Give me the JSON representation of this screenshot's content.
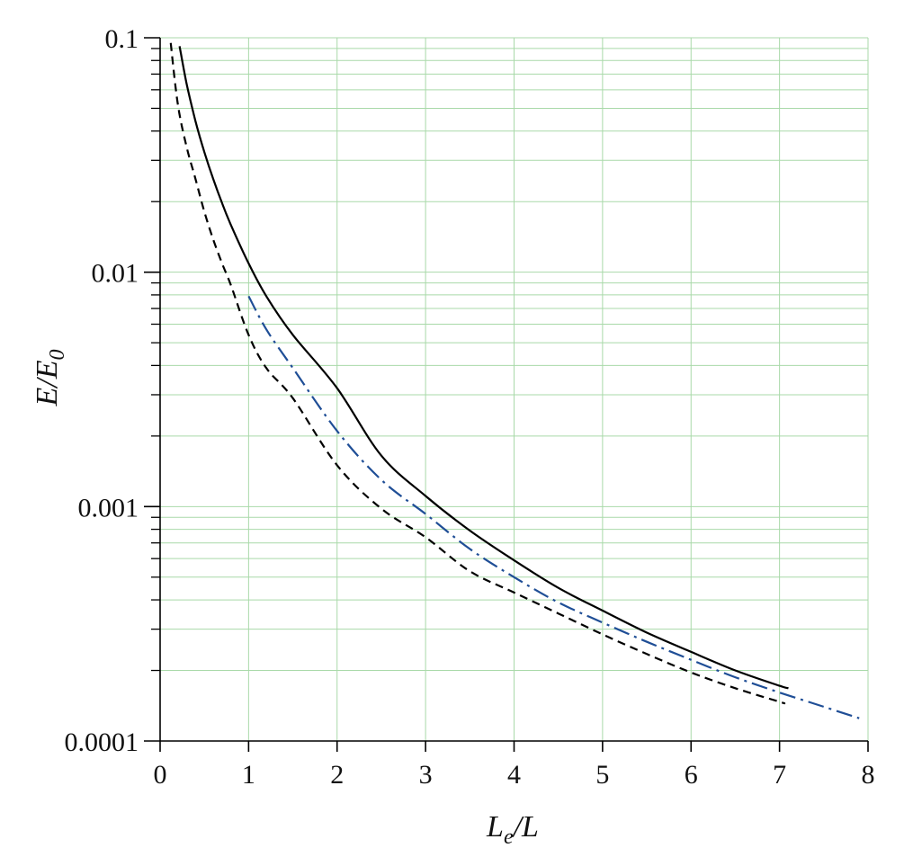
{
  "chart_data": {
    "type": "line",
    "title": "",
    "xlabel": {
      "main": "L",
      "sub": "e",
      "tail": "/L"
    },
    "ylabel": {
      "main": "E/E",
      "sub": "0"
    },
    "xlim": [
      0,
      8
    ],
    "ylim": [
      0.0001,
      0.1
    ],
    "yscale": "log",
    "grid": true,
    "grid_color": "#a9d9a9",
    "x_ticks": [
      0,
      1,
      2,
      3,
      4,
      5,
      6,
      7,
      8
    ],
    "x_tick_labels": [
      "0",
      "1",
      "2",
      "3",
      "4",
      "5",
      "6",
      "7",
      "8"
    ],
    "y_ticks": [
      0.0001,
      0.001,
      0.01,
      0.1
    ],
    "y_tick_labels": [
      "0.0001",
      "0.001",
      "0.01",
      "0.1"
    ],
    "series": [
      {
        "style": "solid",
        "color": "#000000",
        "x": [
          0.22,
          0.3,
          0.4,
          0.5,
          0.6,
          0.7,
          0.8,
          1.0,
          1.2,
          1.5,
          2.0,
          2.5,
          3.0,
          3.5,
          4.0,
          4.5,
          5.0,
          5.5,
          6.0,
          6.5,
          7.0,
          7.1
        ],
        "y": [
          0.092,
          0.0635,
          0.0441,
          0.0325,
          0.025,
          0.0197,
          0.0159,
          0.0109,
          0.0079,
          0.0054,
          0.0032,
          0.00165,
          0.00111,
          0.00079,
          0.00059,
          0.00045,
          0.00036,
          0.00029,
          0.00024,
          0.0002,
          0.000172,
          0.000168
        ]
      },
      {
        "style": "dashed",
        "color": "#000000",
        "x": [
          0.12,
          0.2,
          0.3,
          0.4,
          0.5,
          0.6,
          0.7,
          0.8,
          1.0,
          1.2,
          1.5,
          2.0,
          2.5,
          3.0,
          3.5,
          4.0,
          4.5,
          5.0,
          5.5,
          6.0,
          6.5,
          7.0,
          7.05
        ],
        "y": [
          0.095,
          0.0521,
          0.0342,
          0.025,
          0.0181,
          0.0138,
          0.0109,
          0.0088,
          0.0054,
          0.0039,
          0.0029,
          0.0015,
          0.00098,
          0.00074,
          0.00053,
          0.00043,
          0.00035,
          0.000285,
          0.000235,
          0.000196,
          0.000168,
          0.000147,
          0.000145
        ]
      },
      {
        "style": "dash-dot",
        "color": "#1f4e96",
        "x": [
          1.0,
          1.2,
          1.5,
          2.0,
          2.5,
          3.0,
          3.5,
          4.0,
          4.5,
          5.0,
          5.5,
          6.0,
          6.5,
          7.0,
          7.5,
          7.9
        ],
        "y": [
          0.0079,
          0.0057,
          0.0039,
          0.0021,
          0.0013,
          0.00093,
          0.00066,
          0.0005,
          0.00039,
          0.00032,
          0.000265,
          0.000222,
          0.000187,
          0.000161,
          0.00014,
          0.000125
        ]
      }
    ]
  }
}
